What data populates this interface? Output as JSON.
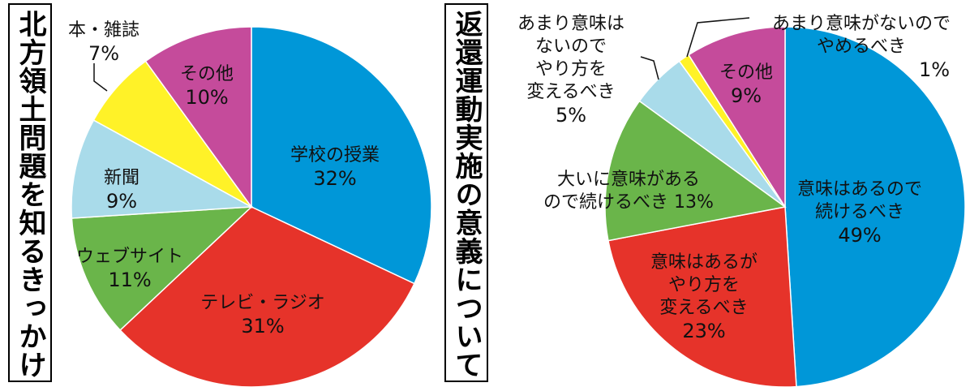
{
  "titles": {
    "left": "北方領土問題を知るきっかけ",
    "right": "返還運動実施の意義について"
  },
  "colors": {
    "blue": "#0097d8",
    "red": "#e6332a",
    "green": "#6ab54a",
    "lightblue": "#a9dbea",
    "yellow": "#fff228",
    "magenta": "#c54b9b"
  },
  "chart_data": [
    {
      "type": "pie",
      "title": "北方領土問題を知るきっかけ",
      "slices": [
        {
          "label": [
            "学校の授業"
          ],
          "value": 32,
          "pct": "32%",
          "color": "blue"
        },
        {
          "label": [
            "テレビ・ラジオ"
          ],
          "value": 31,
          "pct": "31%",
          "color": "red"
        },
        {
          "label": [
            "ウェブサイト"
          ],
          "value": 11,
          "pct": "11%",
          "color": "green"
        },
        {
          "label": [
            "新聞"
          ],
          "value": 9,
          "pct": "9%",
          "color": "lightblue"
        },
        {
          "label": [
            "本・雑誌"
          ],
          "value": 7,
          "pct": "7%",
          "color": "yellow"
        },
        {
          "label": [
            "その他"
          ],
          "value": 10,
          "pct": "10%",
          "color": "magenta"
        }
      ]
    },
    {
      "type": "pie",
      "title": "返還運動実施の意義について",
      "slices": [
        {
          "label": [
            "意味はあるので",
            "続けるべき"
          ],
          "value": 49,
          "pct": "49%",
          "color": "blue"
        },
        {
          "label": [
            "意味はあるが",
            "やり方を",
            "変えるべき"
          ],
          "value": 23,
          "pct": "23%",
          "color": "red"
        },
        {
          "label": [
            "大いに意味がある",
            "ので続けるべき"
          ],
          "value": 13,
          "pct": "13%",
          "color": "green"
        },
        {
          "label": [
            "あまり意味は",
            "ないので",
            "やり方を",
            "変えるべき"
          ],
          "value": 5,
          "pct": "5%",
          "color": "lightblue"
        },
        {
          "label": [
            "あまり意味がないので",
            "やめるべき"
          ],
          "value": 1,
          "pct": "1%",
          "color": "yellow"
        },
        {
          "label": [
            "その他"
          ],
          "value": 9,
          "pct": "9%",
          "color": "magenta"
        }
      ]
    }
  ]
}
